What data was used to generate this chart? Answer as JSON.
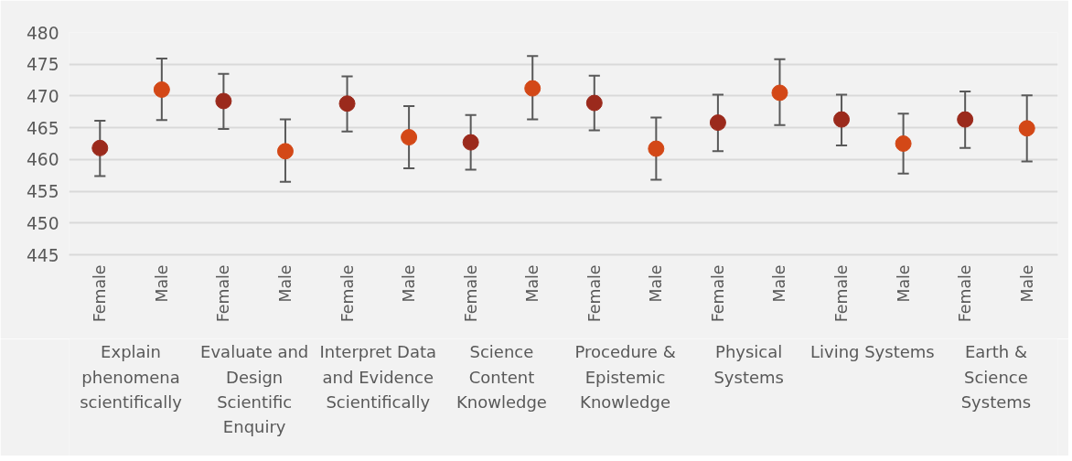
{
  "chart_data": {
    "type": "scatter",
    "categories": [
      "Female",
      "Male",
      "Female",
      "Male",
      "Female",
      "Male",
      "Female",
      "Male",
      "Female",
      "Male",
      "Female",
      "Male",
      "Female",
      "Male",
      "Female",
      "Male"
    ],
    "values": [
      461.8,
      471.0,
      469.2,
      461.3,
      468.8,
      463.5,
      462.7,
      471.2,
      468.9,
      461.7,
      465.8,
      470.5,
      466.3,
      462.5,
      466.3,
      464.9
    ],
    "colors": [
      "#9b2a1c",
      "#d34817",
      "#9b2a1c",
      "#d34817",
      "#9b2a1c",
      "#d34817",
      "#9b2a1c",
      "#d34817",
      "#9b2a1c",
      "#d34817",
      "#9b2a1c",
      "#d34817",
      "#9b2a1c",
      "#d34817",
      "#9b2a1c",
      "#d34817"
    ],
    "errors": [
      [
        457.4,
        466.1
      ],
      [
        466.2,
        475.9
      ],
      [
        464.8,
        473.5
      ],
      [
        456.5,
        466.3
      ],
      [
        464.4,
        473.1
      ],
      [
        458.6,
        468.4
      ],
      [
        458.4,
        467.0
      ],
      [
        466.3,
        476.3
      ],
      [
        464.6,
        473.2
      ],
      [
        456.8,
        466.6
      ],
      [
        461.3,
        470.2
      ],
      [
        465.4,
        475.8
      ],
      [
        462.2,
        470.2
      ],
      [
        457.8,
        467.2
      ],
      [
        461.8,
        470.7
      ],
      [
        459.7,
        470.1
      ]
    ],
    "annotations": [
      "Explain phenomena scientifically",
      "Evaluate and Design Scientific Enquiry",
      "Interpret Data and Evidence Scientifically",
      "Science Content Knowledge",
      "Procedure & Epistemic Knowledge",
      "Physical Systems",
      "Living Systems",
      "Earth & Science Systems"
    ],
    "ylim": [
      445,
      480
    ],
    "yticks": [
      445,
      450,
      455,
      460,
      465,
      470,
      475,
      480
    ],
    "grid": "y",
    "marker": "circle"
  }
}
